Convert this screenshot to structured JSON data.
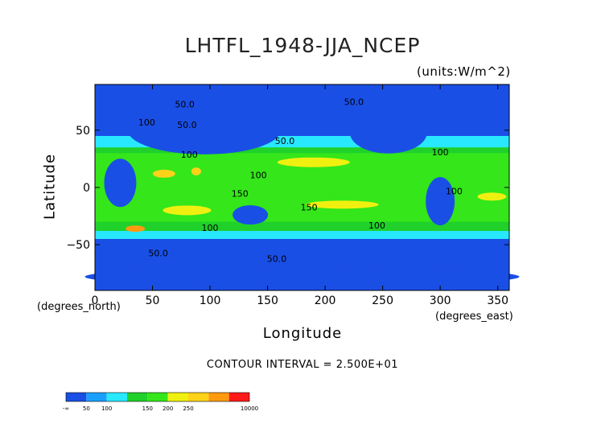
{
  "chart_data": {
    "type": "heatmap",
    "title": "LHTFL_1948-JJA_NCEP",
    "units_note": "(units:W/m^2)",
    "xlabel": "Longitude",
    "ylabel": "Latitude",
    "x_unit_note": "(degrees_east)",
    "y_unit_note": "(degrees_north)",
    "xlim": [
      0,
      360
    ],
    "ylim": [
      -90,
      90
    ],
    "x_ticks": [
      0,
      50,
      100,
      150,
      200,
      250,
      300,
      350
    ],
    "y_ticks": [
      50,
      0,
      -50
    ],
    "y_tick_labels": [
      "50",
      "0",
      "−50"
    ],
    "contour_interval_text": "CONTOUR INTERVAL = 2.500E+01",
    "colorbar": {
      "labels": [
        "-∞",
        "50",
        "100",
        "150",
        "200",
        "250",
        "10000"
      ],
      "colors": [
        "#1a4fe6",
        "#19a0ff",
        "#28e8ff",
        "#1fd12a",
        "#34e61a",
        "#f0f010",
        "#ffd21a",
        "#ff9a10",
        "#ff1a1a"
      ]
    },
    "contour_labels": [
      {
        "text": "50.0",
        "lon": 78,
        "lat": 70
      },
      {
        "text": "50.0",
        "lon": 225,
        "lat": 72
      },
      {
        "text": "100",
        "lon": 45,
        "lat": 54
      },
      {
        "text": "50.0",
        "lon": 80,
        "lat": 52
      },
      {
        "text": "50.0",
        "lon": 165,
        "lat": 38
      },
      {
        "text": "100",
        "lon": 82,
        "lat": 26
      },
      {
        "text": "100",
        "lon": 142,
        "lat": 8
      },
      {
        "text": "150",
        "lon": 126,
        "lat": -8
      },
      {
        "text": "100",
        "lon": 300,
        "lat": 28
      },
      {
        "text": "100",
        "lon": 312,
        "lat": -6
      },
      {
        "text": "150",
        "lon": 186,
        "lat": -20
      },
      {
        "text": "100",
        "lon": 100,
        "lat": -38
      },
      {
        "text": "100",
        "lon": 245,
        "lat": -36
      },
      {
        "text": "50.0",
        "lon": 55,
        "lat": -60
      },
      {
        "text": "50.0",
        "lon": 158,
        "lat": -65
      }
    ]
  }
}
